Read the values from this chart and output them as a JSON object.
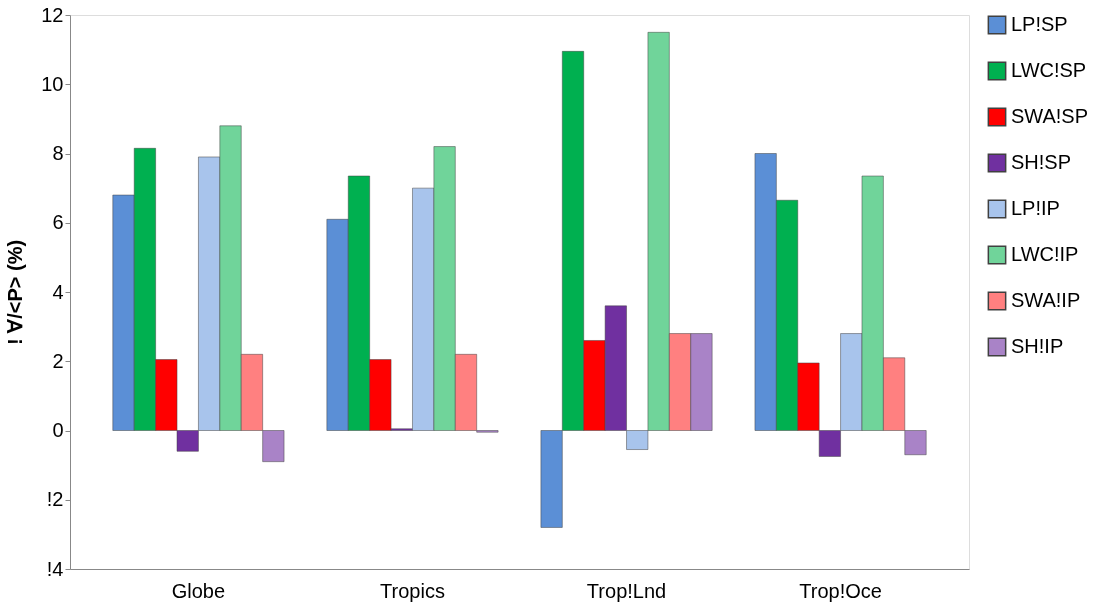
{
  "chart_data": {
    "type": "bar",
    "ylabel": "! ∀/<P> (%)",
    "categories": [
      "Globe",
      "Tropics",
      "Trop!Lnd",
      "Trop!Oce"
    ],
    "series": [
      {
        "name": "LP!SP",
        "color": "#5b8fd6",
        "values": [
          6.8,
          6.1,
          -2.8,
          8.0
        ]
      },
      {
        "name": "LWC!SP",
        "color": "#00b050",
        "values": [
          8.15,
          7.35,
          10.95,
          6.65
        ]
      },
      {
        "name": "SWA!SP",
        "color": "#ff0000",
        "values": [
          2.05,
          2.05,
          2.6,
          1.95
        ]
      },
      {
        "name": "SH!SP",
        "color": "#7030a0",
        "values": [
          -0.6,
          0.05,
          3.6,
          -0.75
        ]
      },
      {
        "name": "LP!IP",
        "color": "#a8c4ec",
        "values": [
          7.9,
          7.0,
          -0.55,
          2.8
        ]
      },
      {
        "name": "LWC!IP",
        "color": "#70d49a",
        "values": [
          8.8,
          8.2,
          11.5,
          7.35
        ]
      },
      {
        "name": "SWA!IP",
        "color": "#ff8080",
        "values": [
          2.2,
          2.2,
          2.8,
          2.1
        ]
      },
      {
        "name": "SH!IP",
        "color": "#a983c7",
        "values": [
          -0.9,
          -0.05,
          2.8,
          -0.7
        ]
      }
    ],
    "ylim": [
      -4,
      12
    ],
    "yticks": [
      {
        "value": -4,
        "label": "!4"
      },
      {
        "value": -2,
        "label": "!2"
      },
      0,
      2,
      4,
      6,
      8,
      10,
      12
    ],
    "grid": false,
    "legend": "right"
  }
}
